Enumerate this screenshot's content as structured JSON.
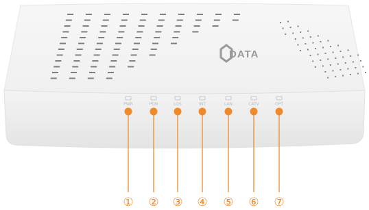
{
  "brand": "DATA",
  "leds": [
    {
      "label": "PWR",
      "callout": "①"
    },
    {
      "label": "PON",
      "callout": "②"
    },
    {
      "label": "LOS",
      "callout": "③"
    },
    {
      "label": "INT",
      "callout": "④"
    },
    {
      "label": "LAN",
      "callout": "⑤"
    },
    {
      "label": "CATV",
      "callout": "⑥"
    },
    {
      "label": "OPT",
      "callout": "⑦"
    }
  ]
}
